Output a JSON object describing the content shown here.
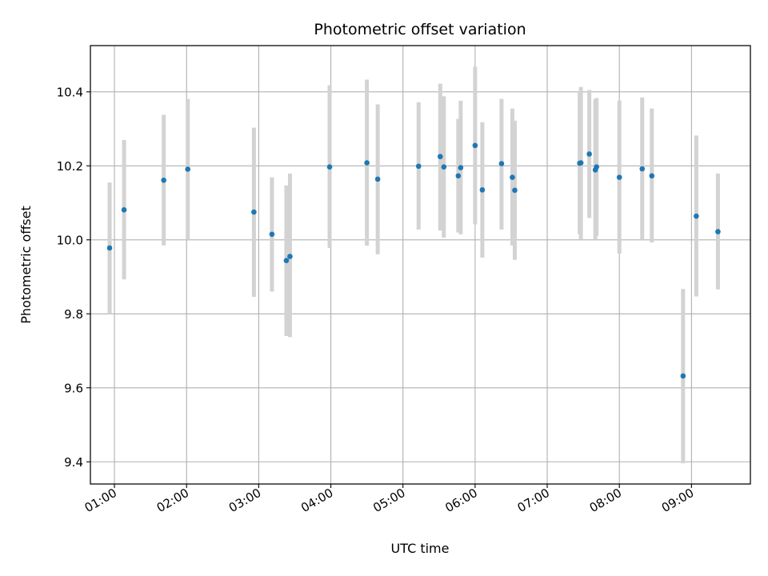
{
  "chart_data": {
    "type": "scatter",
    "title": "Photometric offset variation",
    "xlabel": "UTC time",
    "ylabel": "Photometric offset",
    "x_unit": "UTC time (HH:MM)",
    "xlim": [
      "00:40",
      "09:49"
    ],
    "ylim": [
      9.34,
      10.525
    ],
    "x_ticks": [
      "01:00",
      "02:00",
      "03:00",
      "04:00",
      "05:00",
      "06:00",
      "07:00",
      "08:00",
      "09:00"
    ],
    "y_ticks": [
      9.4,
      9.6,
      9.8,
      10.0,
      10.2,
      10.4
    ],
    "grid": true,
    "colors": {
      "point": "#1f77b4",
      "errorbar": "#d3d3d3",
      "grid": "#b0b0b0",
      "axes": "#000000"
    },
    "series": [
      {
        "points": [
          {
            "x": "00:56",
            "y": 9.978,
            "ylow": 9.8,
            "yhigh": 10.155
          },
          {
            "x": "01:08",
            "y": 10.081,
            "ylow": 9.893,
            "yhigh": 10.27
          },
          {
            "x": "01:41",
            "y": 10.161,
            "ylow": 9.985,
            "yhigh": 10.338
          },
          {
            "x": "02:01",
            "y": 10.191,
            "ylow": 10.0,
            "yhigh": 10.381
          },
          {
            "x": "02:56",
            "y": 10.075,
            "ylow": 9.846,
            "yhigh": 10.303
          },
          {
            "x": "03:11",
            "y": 10.015,
            "ylow": 9.86,
            "yhigh": 10.169
          },
          {
            "x": "03:23",
            "y": 9.944,
            "ylow": 9.74,
            "yhigh": 10.147
          },
          {
            "x": "03:26",
            "y": 9.955,
            "ylow": 9.737,
            "yhigh": 10.179
          },
          {
            "x": "03:59",
            "y": 10.197,
            "ylow": 9.978,
            "yhigh": 10.418
          },
          {
            "x": "04:30",
            "y": 10.208,
            "ylow": 9.984,
            "yhigh": 10.433
          },
          {
            "x": "04:39",
            "y": 10.164,
            "ylow": 9.961,
            "yhigh": 10.366
          },
          {
            "x": "05:13",
            "y": 10.199,
            "ylow": 10.028,
            "yhigh": 10.372
          },
          {
            "x": "05:31",
            "y": 10.225,
            "ylow": 10.025,
            "yhigh": 10.422
          },
          {
            "x": "05:34",
            "y": 10.197,
            "ylow": 10.006,
            "yhigh": 10.388
          },
          {
            "x": "05:46",
            "y": 10.173,
            "ylow": 10.02,
            "yhigh": 10.327
          },
          {
            "x": "05:48",
            "y": 10.195,
            "ylow": 10.015,
            "yhigh": 10.376
          },
          {
            "x": "06:00",
            "y": 10.255,
            "ylow": 10.042,
            "yhigh": 10.468
          },
          {
            "x": "06:06",
            "y": 10.135,
            "ylow": 9.952,
            "yhigh": 10.318
          },
          {
            "x": "06:22",
            "y": 10.206,
            "ylow": 10.028,
            "yhigh": 10.381
          },
          {
            "x": "06:31",
            "y": 10.169,
            "ylow": 9.985,
            "yhigh": 10.355
          },
          {
            "x": "06:33",
            "y": 10.134,
            "ylow": 9.946,
            "yhigh": 10.322
          },
          {
            "x": "07:27",
            "y": 10.207,
            "ylow": 10.015,
            "yhigh": 10.4
          },
          {
            "x": "07:28",
            "y": 10.208,
            "ylow": 10.0,
            "yhigh": 10.413
          },
          {
            "x": "07:35",
            "y": 10.232,
            "ylow": 10.059,
            "yhigh": 10.405
          },
          {
            "x": "07:40",
            "y": 10.189,
            "ylow": 10.0,
            "yhigh": 10.38
          },
          {
            "x": "07:41",
            "y": 10.197,
            "ylow": 10.01,
            "yhigh": 10.383
          },
          {
            "x": "08:00",
            "y": 10.169,
            "ylow": 9.963,
            "yhigh": 10.376
          },
          {
            "x": "08:19",
            "y": 10.192,
            "ylow": 10.0,
            "yhigh": 10.385
          },
          {
            "x": "08:27",
            "y": 10.173,
            "ylow": 9.993,
            "yhigh": 10.355
          },
          {
            "x": "08:53",
            "y": 9.632,
            "ylow": 9.396,
            "yhigh": 9.867
          },
          {
            "x": "09:04",
            "y": 10.064,
            "ylow": 9.847,
            "yhigh": 10.282
          },
          {
            "x": "09:22",
            "y": 10.022,
            "ylow": 9.866,
            "yhigh": 10.179
          }
        ]
      }
    ]
  }
}
